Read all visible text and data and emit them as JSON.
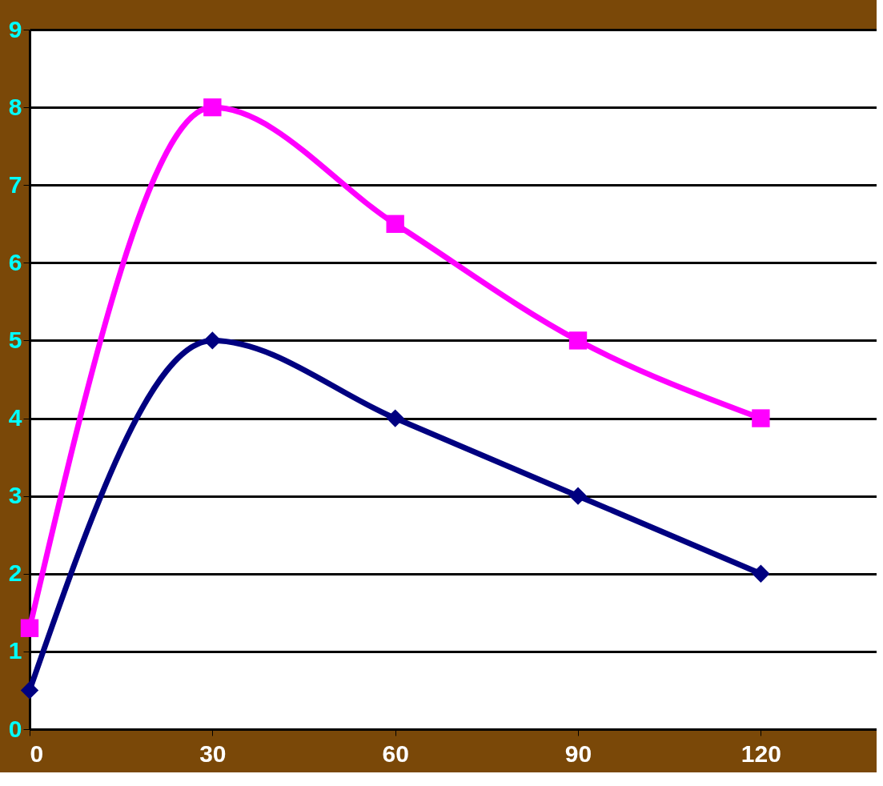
{
  "chart_data": {
    "type": "line",
    "x": [
      0,
      30,
      60,
      90,
      120
    ],
    "series": [
      {
        "color": "#ff00ff",
        "marker": "square",
        "values": [
          1.3,
          8,
          6.5,
          5,
          4
        ]
      },
      {
        "color": "#000080",
        "marker": "diamond",
        "values": [
          0.5,
          5,
          4,
          3,
          2
        ]
      }
    ],
    "xlim": [
      0,
      139
    ],
    "xticks": [
      0,
      30,
      60,
      90,
      120
    ],
    "ylim": [
      0,
      9
    ],
    "yticks": [
      0,
      1,
      2,
      3,
      4,
      5,
      6,
      7,
      8,
      9
    ],
    "grid": "y",
    "line_style": "solid"
  }
}
